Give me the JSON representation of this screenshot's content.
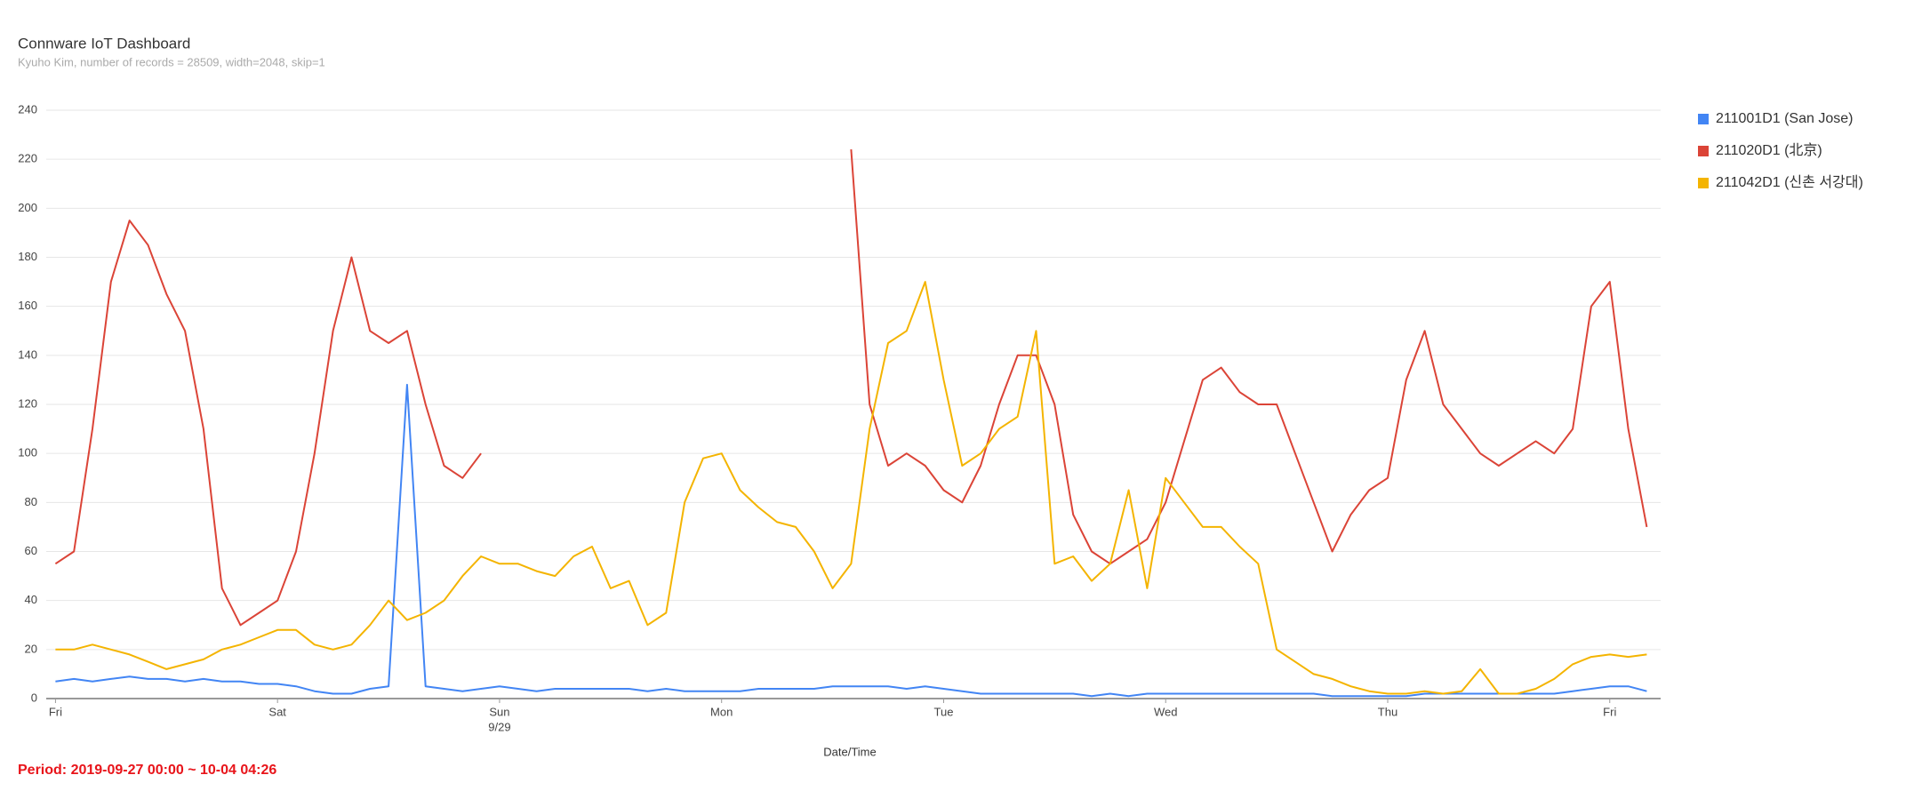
{
  "chart_data": {
    "type": "line",
    "title": "Connware IoT Dashboard",
    "subtitle": "Kyuho Kim, number of records = 28509, width=2048, skip=1",
    "x_label": "Date/Time",
    "period": "Period: 2019-09-27 00:00 ~ 10-04 04:26",
    "x": [
      0,
      2,
      4,
      6,
      8,
      10,
      12,
      14,
      16,
      18,
      20,
      22,
      24,
      26,
      28,
      30,
      32,
      34,
      36,
      38,
      40,
      42,
      44,
      46,
      48,
      50,
      52,
      54,
      56,
      58,
      60,
      62,
      64,
      66,
      68,
      70,
      72,
      74,
      76,
      78,
      80,
      82,
      84,
      86,
      88,
      90,
      92,
      94,
      96,
      98,
      100,
      102,
      104,
      106,
      108,
      110,
      112,
      114,
      116,
      118,
      120,
      122,
      124,
      126,
      128,
      130,
      132,
      134,
      136,
      138,
      140,
      142,
      144,
      146,
      148,
      150,
      152,
      154,
      156,
      158,
      160,
      162,
      164,
      166,
      168,
      170,
      172
    ],
    "xlim": [
      -1,
      173.5
    ],
    "xticks": [
      {
        "value": 0,
        "label": "Fri"
      },
      {
        "value": 24,
        "label": "Sat"
      },
      {
        "value": 48,
        "label": "Sun",
        "sublabel": "9/29"
      },
      {
        "value": 72,
        "label": "Mon"
      },
      {
        "value": 96,
        "label": "Tue"
      },
      {
        "value": 120,
        "label": "Wed"
      },
      {
        "value": 144,
        "label": "Thu"
      },
      {
        "value": 168,
        "label": "Fri"
      }
    ],
    "ylim": [
      0,
      240
    ],
    "yticks": [
      0,
      20,
      40,
      60,
      80,
      100,
      120,
      140,
      160,
      180,
      200,
      220,
      240
    ],
    "grid": true,
    "legend": "right",
    "series": [
      {
        "name": "211001D1 (San Jose)",
        "color": "#4285f4",
        "values": [
          7,
          8,
          7,
          8,
          9,
          8,
          8,
          7,
          8,
          7,
          7,
          6,
          6,
          5,
          3,
          2,
          2,
          4,
          5,
          128,
          5,
          4,
          3,
          4,
          5,
          4,
          3,
          4,
          4,
          4,
          4,
          4,
          3,
          4,
          3,
          3,
          3,
          3,
          4,
          4,
          4,
          4,
          5,
          5,
          5,
          5,
          4,
          5,
          4,
          3,
          2,
          2,
          2,
          2,
          2,
          2,
          1,
          2,
          1,
          2,
          2,
          2,
          2,
          2,
          2,
          2,
          2,
          2,
          2,
          1,
          1,
          1,
          1,
          1,
          2,
          2,
          2,
          2,
          2,
          2,
          2,
          2,
          3,
          4,
          5,
          5,
          3
        ]
      },
      {
        "name": "211020D1 (北京)",
        "color": "#db4437",
        "values": [
          55,
          60,
          110,
          170,
          195,
          185,
          165,
          150,
          110,
          45,
          30,
          35,
          40,
          60,
          100,
          150,
          180,
          150,
          145,
          150,
          120,
          95,
          90,
          100,
          null,
          null,
          null,
          null,
          null,
          null,
          null,
          null,
          null,
          null,
          null,
          null,
          null,
          null,
          null,
          null,
          null,
          null,
          null,
          224,
          120,
          95,
          100,
          95,
          85,
          80,
          95,
          120,
          140,
          140,
          120,
          75,
          60,
          55,
          60,
          65,
          80,
          105,
          130,
          135,
          125,
          120,
          120,
          100,
          80,
          60,
          75,
          85,
          90,
          130,
          150,
          120,
          110,
          100,
          95,
          100,
          105,
          100,
          110,
          160,
          170,
          110,
          70
        ]
      },
      {
        "name": "211042D1 (신촌 서강대)",
        "color": "#f4b400",
        "values": [
          20,
          20,
          22,
          20,
          18,
          15,
          12,
          14,
          16,
          20,
          22,
          25,
          28,
          28,
          22,
          20,
          22,
          30,
          40,
          32,
          35,
          40,
          50,
          58,
          55,
          55,
          52,
          50,
          58,
          62,
          45,
          48,
          30,
          35,
          80,
          98,
          100,
          85,
          78,
          72,
          70,
          60,
          45,
          55,
          110,
          145,
          150,
          170,
          130,
          95,
          100,
          110,
          115,
          150,
          55,
          58,
          48,
          55,
          85,
          45,
          90,
          80,
          70,
          70,
          62,
          55,
          20,
          15,
          10,
          8,
          5,
          3,
          2,
          2,
          3,
          2,
          3,
          12,
          2,
          2,
          4,
          8,
          14,
          17,
          18,
          17,
          18
        ]
      }
    ]
  }
}
